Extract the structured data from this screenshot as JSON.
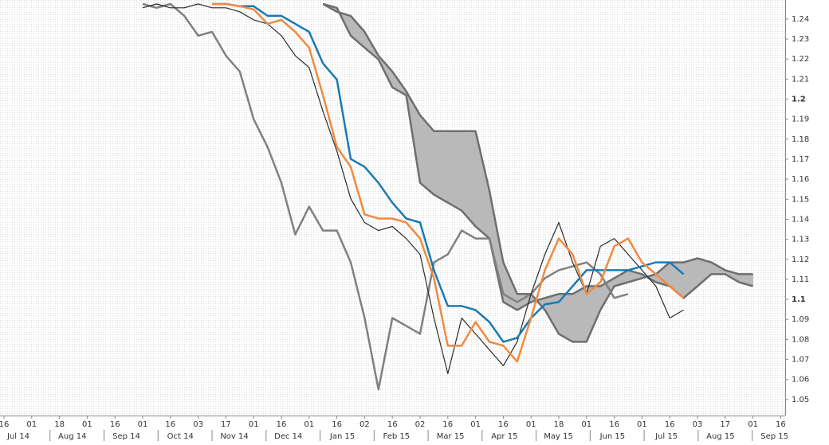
{
  "chart_data": {
    "type": "line",
    "categories": [
      "16",
      null,
      "01",
      null,
      "18",
      null,
      "01",
      null,
      "16",
      null,
      "01",
      null,
      "16",
      null,
      "03",
      null,
      "17",
      null,
      "01",
      null,
      "16",
      null,
      "01",
      null,
      "16",
      null,
      "02",
      null,
      "16",
      null,
      "02",
      null,
      "16",
      null,
      "01",
      null,
      "16",
      null,
      "01",
      null,
      "18",
      null,
      "01",
      null,
      "16",
      null,
      "01",
      null,
      "16",
      null,
      "03",
      null,
      "17",
      null,
      "01",
      null,
      "16"
    ],
    "months": [
      "Jul 14",
      "Aug 14",
      "Sep 14",
      "Oct 14",
      "Nov 14",
      "Dec 14",
      "Jan 15",
      "Feb 15",
      "Mar 15",
      "Apr 15",
      "May 15",
      "Jun 15",
      "Jul 15",
      "Aug 15",
      "Sep 15"
    ],
    "series": [
      {
        "color": "#2a2a2a",
        "values": [
          null,
          null,
          null,
          null,
          null,
          null,
          null,
          null,
          null,
          null,
          1.2456,
          1.2475,
          1.2456,
          1.2456,
          1.2475,
          1.2456,
          1.2456,
          1.2436,
          1.2396,
          1.2376,
          1.2317,
          1.2217,
          1.2158,
          1.1939,
          1.1741,
          1.1503,
          1.1384,
          1.1344,
          1.1364,
          1.1304,
          1.1225,
          1.0907,
          1.0629,
          1.0907,
          1.0828,
          1.0748,
          1.0669,
          1.0788,
          1.1027,
          1.1225,
          1.1384,
          1.1185,
          1.1027,
          1.1265,
          1.1304,
          1.1225,
          1.1146,
          1.1066,
          1.0907,
          1.0947,
          null,
          null,
          null,
          null,
          null,
          null,
          null
        ]
      },
      {
        "color": "#1a7ab5",
        "values": [
          null,
          null,
          null,
          null,
          null,
          null,
          null,
          null,
          null,
          null,
          null,
          null,
          null,
          null,
          null,
          1.2475,
          1.2475,
          1.2464,
          1.2464,
          1.2416,
          1.2416,
          1.2376,
          1.2336,
          1.2178,
          1.2098,
          1.1701,
          1.1662,
          1.1582,
          1.1483,
          1.1404,
          1.1384,
          1.1146,
          1.0967,
          1.0967,
          1.0947,
          1.0887,
          1.0788,
          1.0808,
          1.0907,
          1.0975,
          1.0987,
          1.1066,
          1.1146,
          1.1146,
          1.1146,
          1.1146,
          1.1165,
          1.1185,
          1.1185,
          1.1126,
          null,
          null,
          null,
          null,
          null,
          null,
          null
        ]
      },
      {
        "color": "#f08a40",
        "values": [
          null,
          null,
          null,
          null,
          null,
          null,
          null,
          null,
          null,
          null,
          null,
          null,
          null,
          null,
          null,
          1.2475,
          1.2475,
          1.2464,
          1.2448,
          1.2376,
          1.2396,
          1.2336,
          1.2257,
          1.2019,
          1.1761,
          1.1662,
          1.1424,
          1.1404,
          1.1404,
          1.1384,
          1.1304,
          1.1106,
          1.0769,
          1.0769,
          1.0887,
          1.0788,
          1.0769,
          1.0689,
          1.0907,
          1.1146,
          1.1304,
          1.1225,
          1.1027,
          1.1086,
          1.1265,
          1.1304,
          1.1185,
          1.1126,
          1.1066,
          1.1007,
          null,
          null,
          null,
          null,
          null,
          null,
          null
        ]
      },
      {
        "color": "#808080",
        "values": [
          null,
          null,
          null,
          null,
          null,
          null,
          null,
          null,
          null,
          null,
          1.2475,
          1.2456,
          1.2475,
          1.2416,
          1.2317,
          1.2336,
          1.2217,
          1.2138,
          1.19,
          1.1761,
          1.1582,
          1.1324,
          1.1463,
          1.1344,
          1.1344,
          1.1185,
          1.0907,
          1.055,
          1.0907,
          1.0868,
          1.0828,
          1.1185,
          1.1225,
          1.1344,
          1.1304,
          1.1304,
          1.1027,
          1.0987,
          1.1027,
          1.1106,
          1.1146,
          1.1165,
          1.1185,
          1.1126,
          1.1007,
          1.1027,
          null,
          null,
          null,
          null,
          null,
          null,
          null,
          null,
          null,
          null,
          null
        ]
      },
      {
        "color": "#6e6e6e",
        "values": [
          null,
          null,
          null,
          null,
          null,
          null,
          null,
          null,
          null,
          null,
          null,
          null,
          null,
          null,
          null,
          null,
          null,
          null,
          null,
          null,
          null,
          null,
          null,
          1.2475,
          1.2436,
          1.2416,
          1.2336,
          1.2217,
          1.2138,
          1.2039,
          1.192,
          1.184,
          1.184,
          1.184,
          1.184,
          1.1542,
          1.1185,
          1.1027,
          1.1027,
          1.0947,
          1.0828,
          1.0788,
          1.0788,
          1.0947,
          1.1066,
          1.1086,
          1.1106,
          1.1126,
          1.1185,
          1.1185,
          1.1205,
          1.1185,
          1.1146,
          1.1126,
          1.1126,
          null,
          null
        ]
      },
      {
        "color": "#6e6e6e",
        "values": [
          null,
          null,
          null,
          null,
          null,
          null,
          null,
          null,
          null,
          null,
          null,
          null,
          null,
          null,
          null,
          null,
          null,
          null,
          null,
          null,
          null,
          null,
          null,
          1.2475,
          1.2456,
          1.2317,
          1.2257,
          1.2198,
          1.2059,
          1.2019,
          1.1582,
          1.1523,
          1.1483,
          1.1443,
          1.1364,
          1.1304,
          1.0987,
          1.0947,
          1.0987,
          1.1007,
          1.1027,
          1.1027,
          1.1066,
          1.1066,
          1.1106,
          1.1146,
          1.1126,
          1.1086,
          1.1066,
          1.1007,
          1.1066,
          1.1126,
          1.1126,
          1.1086,
          1.1066,
          null,
          null
        ]
      }
    ],
    "cloud_color": "#b9b9b9",
    "ylim": [
      1.042,
      1.2495
    ],
    "yticks": [
      1.05,
      1.06,
      1.07,
      1.08,
      1.09,
      1.1,
      1.11,
      1.12,
      1.13,
      1.14,
      1.15,
      1.16,
      1.17,
      1.18,
      1.19,
      1.2,
      1.21,
      1.22,
      1.23,
      1.24
    ],
    "grid": false
  }
}
